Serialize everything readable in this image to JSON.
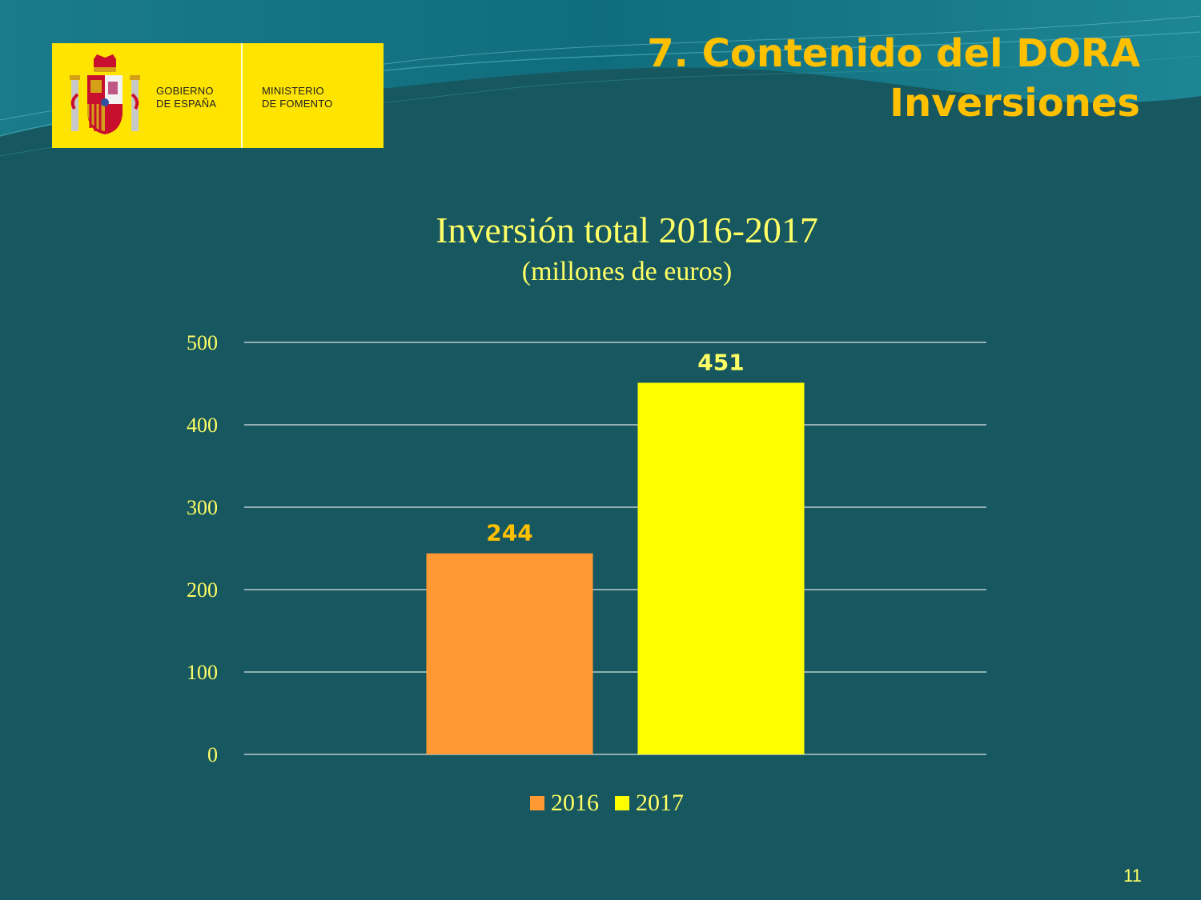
{
  "logo": {
    "line1a": "GOBIERNO",
    "line1b": "DE ESPAÑA",
    "line2a": "MINISTERIO",
    "line2b": "DE FOMENTO"
  },
  "slide": {
    "title_line1": "7. Contenido del DORA",
    "title_line2": "Inversiones",
    "page_number": "11"
  },
  "colors": {
    "background": "#17575f",
    "title": "#ffc000",
    "chart_text": "#ffff66",
    "logo_yellow": "#ffe400"
  },
  "chart_data": {
    "type": "bar",
    "title": "Inversión total 2016-2017",
    "subtitle": "(millones de euros)",
    "categories": [
      "2016",
      "2017"
    ],
    "series": [
      {
        "name": "2016",
        "value": 244,
        "color": "#ff9933",
        "label_color": "#ffc000"
      },
      {
        "name": "2017",
        "value": 451,
        "color": "#ffff00",
        "label_color": "#ffff66"
      }
    ],
    "ylim": [
      0,
      500
    ],
    "yticks": [
      "0",
      "100",
      "200",
      "300",
      "400",
      "500"
    ],
    "grid": true,
    "legend": "bottom"
  }
}
